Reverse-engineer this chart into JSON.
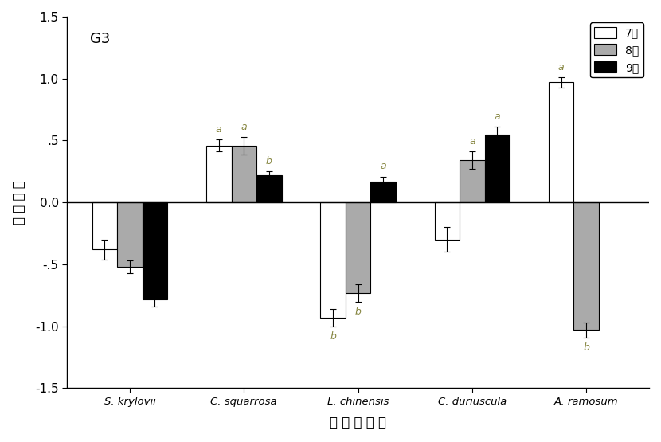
{
  "title": "G3",
  "xlabel": "植 物 种 名 称",
  "ylabel": "择 食 指 数",
  "ylim": [
    -1.5,
    1.5
  ],
  "yticks": [
    -1.5,
    -1.0,
    -0.5,
    0.0,
    0.5,
    1.0,
    1.5
  ],
  "ytick_labels": [
    "-1.5",
    "-1.0",
    "-.5",
    "0.0",
    ".5",
    "1.0",
    "1.5"
  ],
  "categories": [
    "S. krylovii",
    "C. squarrosa",
    "L. chinensis",
    "C. duriuscula",
    "A. ramosum"
  ],
  "legend_labels": [
    "7月",
    "8月",
    "9月"
  ],
  "bar_colors": [
    "white",
    "#aaaaaa",
    "black"
  ],
  "bar_edgecolors": [
    "black",
    "black",
    "black"
  ],
  "values": {
    "jul": [
      -0.38,
      0.46,
      -0.93,
      -0.3,
      0.97
    ],
    "aug": [
      -0.52,
      0.46,
      -0.73,
      0.34,
      -1.03
    ],
    "sep": [
      -0.78,
      0.22,
      0.17,
      0.55,
      null
    ]
  },
  "errors": {
    "jul": [
      0.08,
      0.05,
      0.07,
      0.1,
      0.04
    ],
    "aug": [
      0.05,
      0.07,
      0.07,
      0.07,
      0.06
    ],
    "sep": [
      0.06,
      0.03,
      0.04,
      0.06,
      null
    ]
  },
  "sig_labels": {
    "jul": [
      "",
      "a",
      "b",
      "",
      "a"
    ],
    "aug": [
      "",
      "a",
      "b",
      "a",
      "b"
    ],
    "sep": [
      "",
      "b",
      "a",
      "a",
      ""
    ]
  },
  "bar_width": 0.22,
  "sig_color": "#888844"
}
